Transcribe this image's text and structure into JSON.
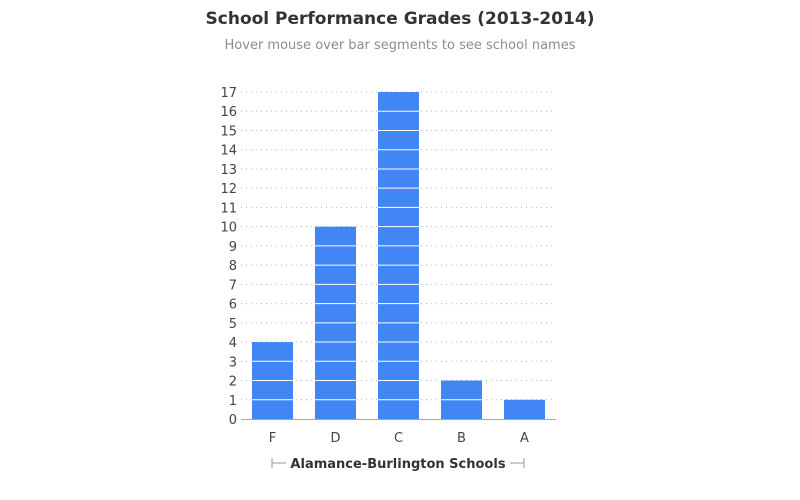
{
  "header": {
    "title": "School Performance Grades (2013-2014)",
    "subtitle": "Hover mouse over bar segments to see school names"
  },
  "chart_data": {
    "type": "bar",
    "categories": [
      "F",
      "D",
      "C",
      "B",
      "A"
    ],
    "values": [
      4,
      10,
      17,
      2,
      1
    ],
    "xlabel": "Alamance-Burlington Schools",
    "ylabel": "",
    "ylim": [
      0,
      17
    ],
    "yticks": [
      0,
      1,
      2,
      3,
      4,
      5,
      6,
      7,
      8,
      9,
      10,
      11,
      12,
      13,
      14,
      15,
      16,
      17
    ],
    "grid": true,
    "bar_color": "#4285f4",
    "segment_divider_color": "#ffffff",
    "grid_color": "#b3b3b3",
    "axis_color": "#a0a8c0"
  }
}
